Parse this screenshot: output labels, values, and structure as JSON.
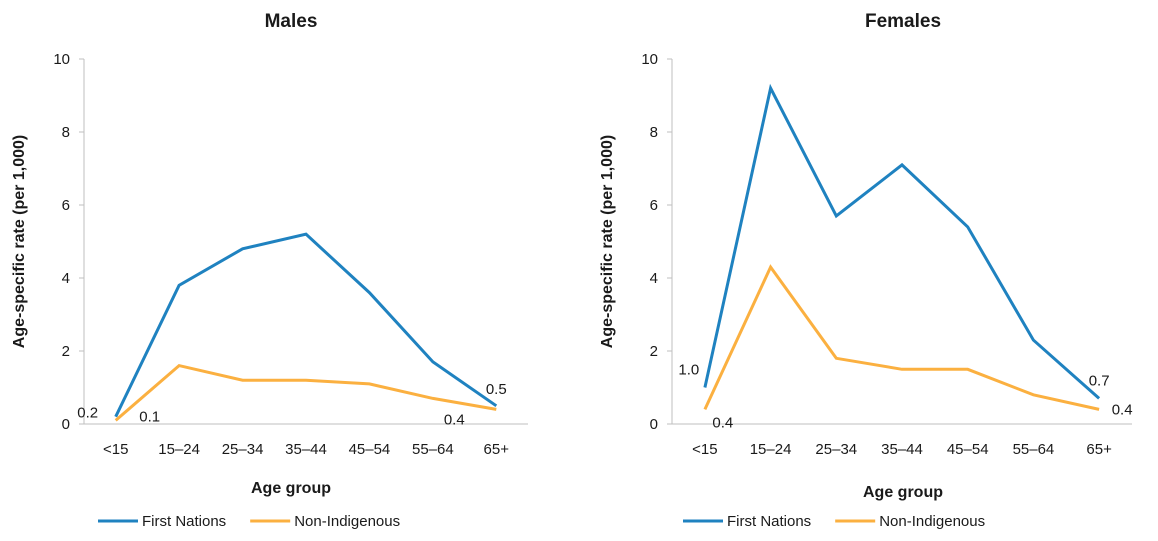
{
  "chart_data": [
    {
      "type": "line",
      "title": "Males",
      "xlabel": "Age group",
      "ylabel": "Age-specific rate (per 1,000)",
      "ylim": [
        0,
        10
      ],
      "yticks": [
        "0",
        "2",
        "4",
        "6",
        "8",
        "10"
      ],
      "categories": [
        "<15",
        "15–24",
        "25–34",
        "35–44",
        "45–54",
        "55–64",
        "65+"
      ],
      "series": [
        {
          "name": "First Nations",
          "color": "#1f82c0",
          "values": [
            0.2,
            3.8,
            4.8,
            5.2,
            3.6,
            1.7,
            0.5
          ]
        },
        {
          "name": "Non-Indigenous",
          "color": "#fbb040",
          "values": [
            0.1,
            1.6,
            1.2,
            1.2,
            1.1,
            0.7,
            0.4
          ]
        }
      ],
      "data_labels": [
        {
          "series": 0,
          "index": 0,
          "text": "0.2"
        },
        {
          "series": 1,
          "index": 0,
          "text": "0.1"
        },
        {
          "series": 0,
          "index": 6,
          "text": "0.5"
        },
        {
          "series": 1,
          "index": 6,
          "text": "0.4"
        }
      ],
      "grid": false,
      "legend_position": "bottom"
    },
    {
      "type": "line",
      "title": "Females",
      "xlabel": "Age group",
      "ylabel": "Age-specific rate (per 1,000)",
      "ylim": [
        0,
        10
      ],
      "yticks": [
        "0",
        "2",
        "4",
        "6",
        "8",
        "10"
      ],
      "categories": [
        "<15",
        "15–24",
        "25–34",
        "35–44",
        "45–54",
        "55–64",
        "65+"
      ],
      "series": [
        {
          "name": "First Nations",
          "color": "#1f82c0",
          "values": [
            1.0,
            9.2,
            5.7,
            7.1,
            5.4,
            2.3,
            0.7
          ]
        },
        {
          "name": "Non-Indigenous",
          "color": "#fbb040",
          "values": [
            0.4,
            4.3,
            1.8,
            1.5,
            1.5,
            0.8,
            0.4
          ]
        }
      ],
      "data_labels": [
        {
          "series": 0,
          "index": 0,
          "text": "1.0"
        },
        {
          "series": 1,
          "index": 0,
          "text": "0.4"
        },
        {
          "series": 0,
          "index": 6,
          "text": "0.7"
        },
        {
          "series": 1,
          "index": 6,
          "text": "0.4"
        }
      ],
      "grid": false,
      "legend_position": "bottom"
    }
  ]
}
